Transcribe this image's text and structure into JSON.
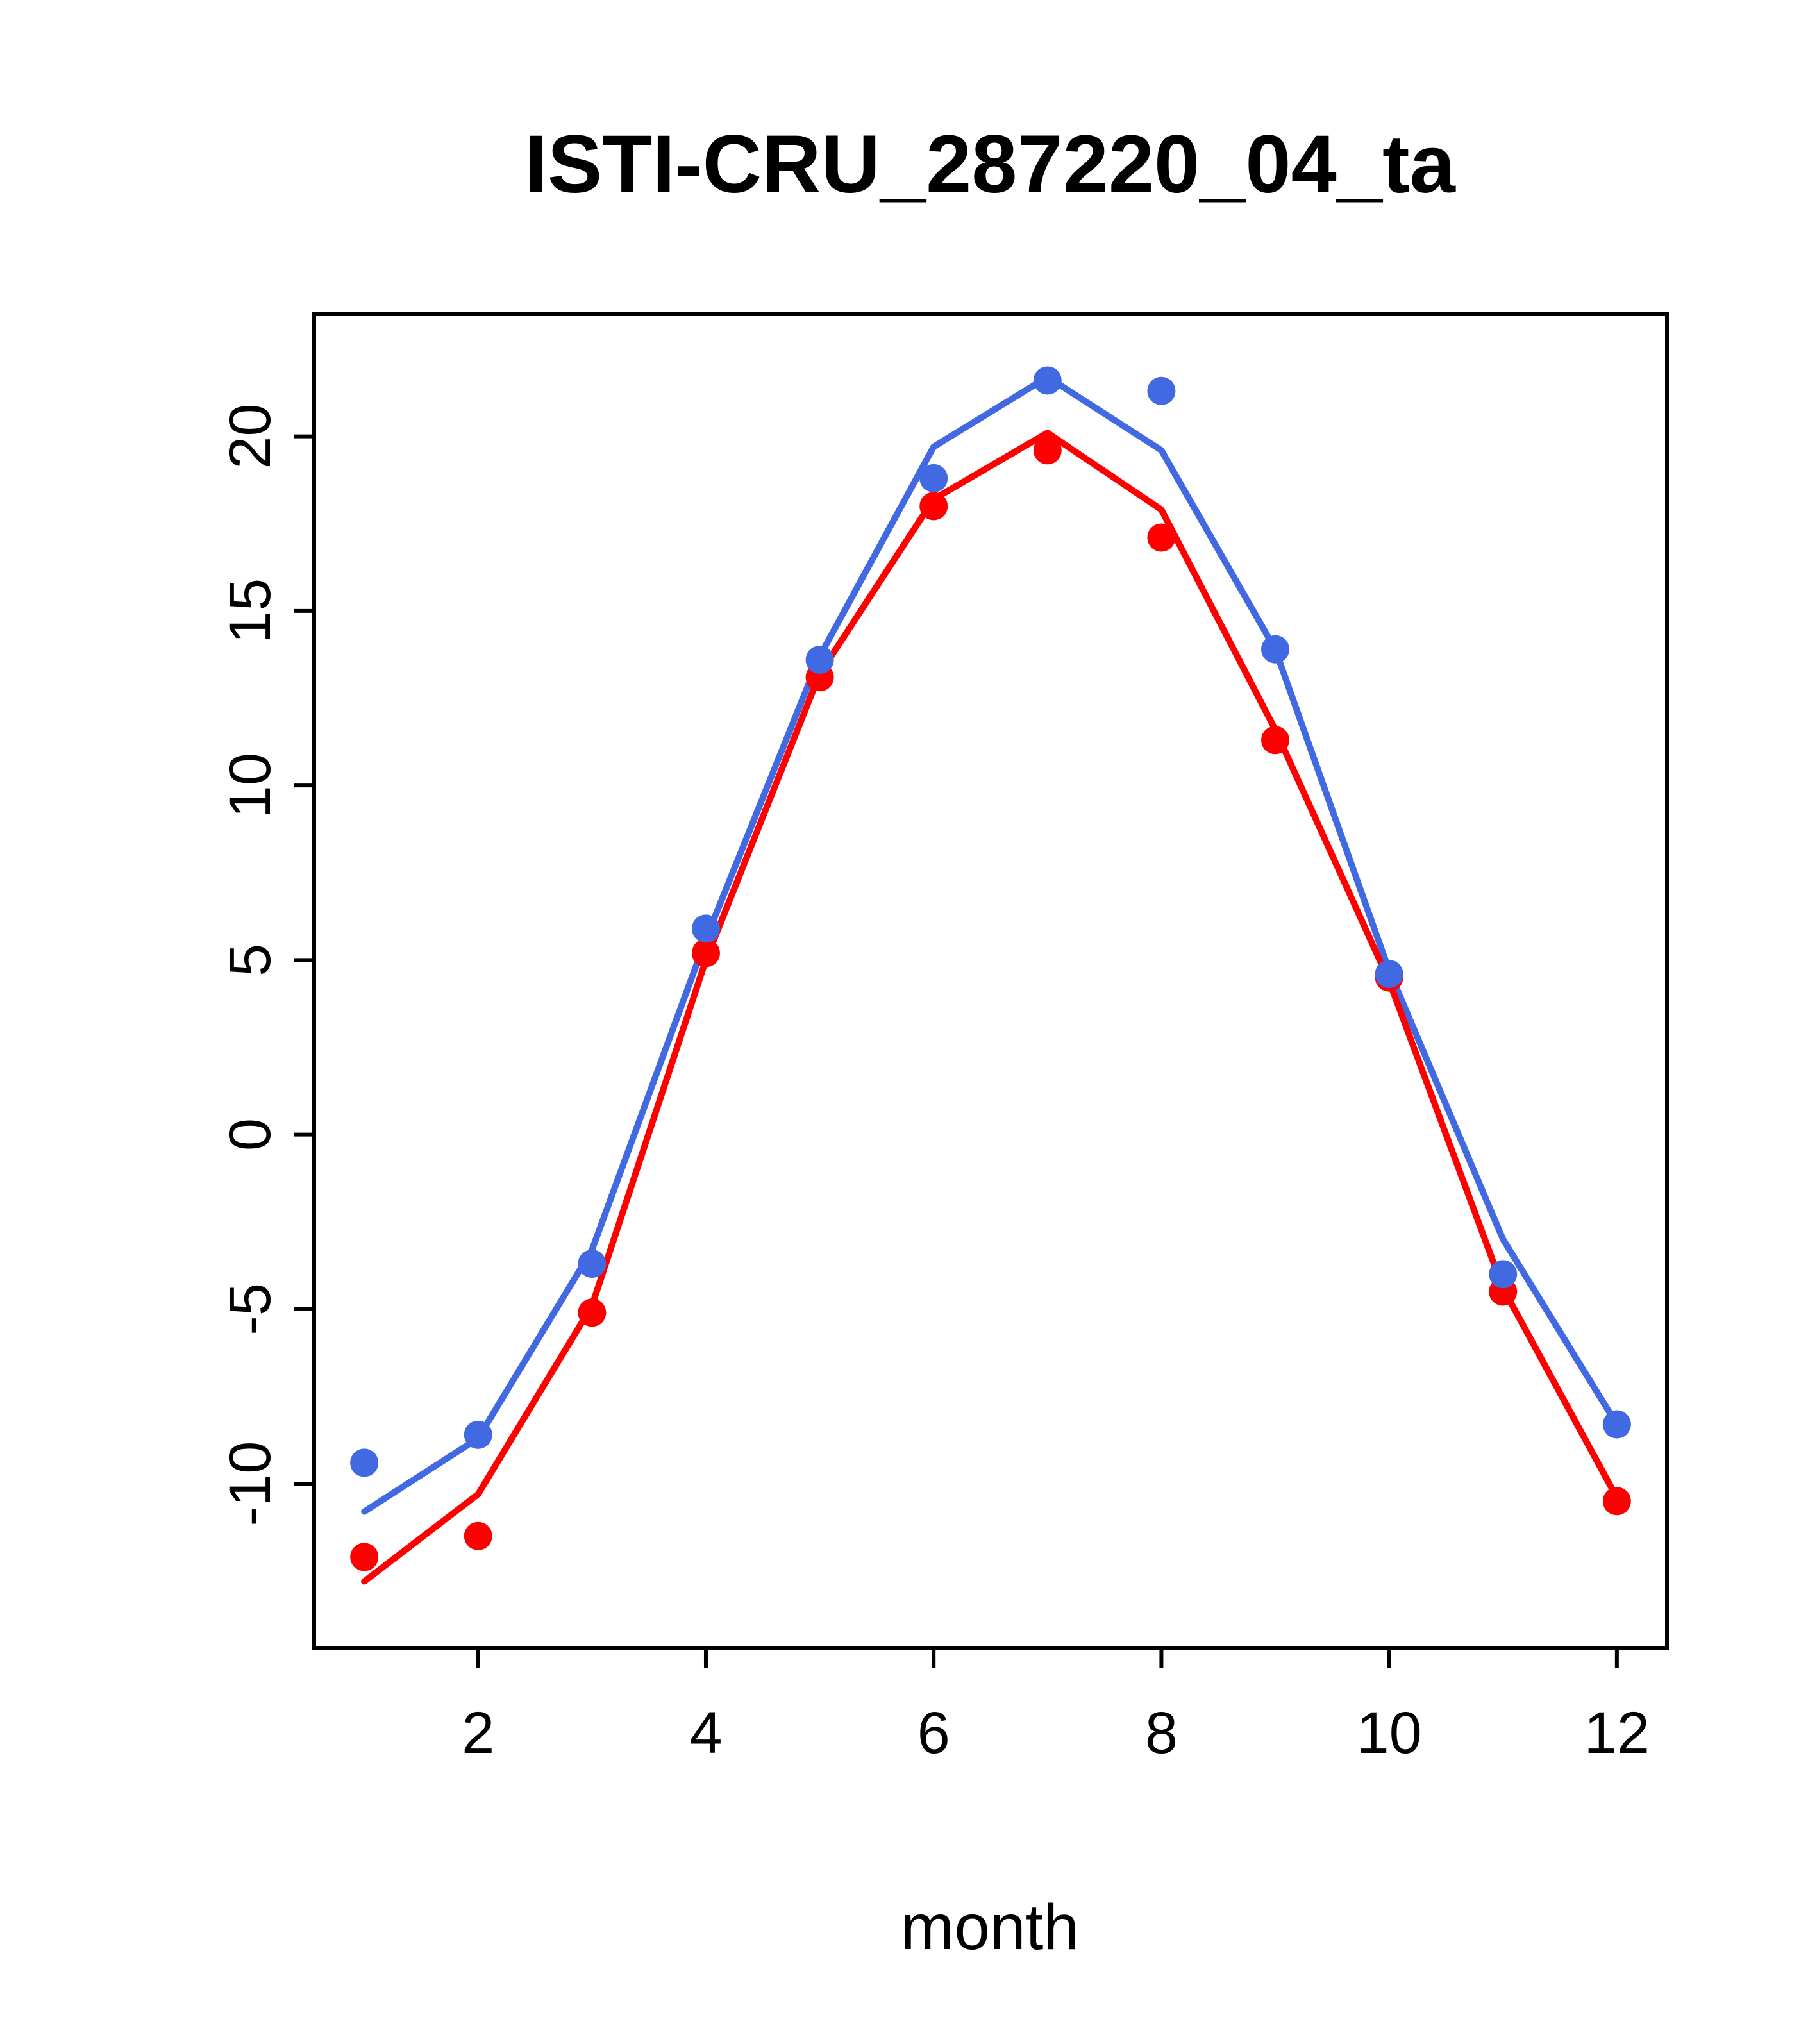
{
  "chart_data": {
    "type": "line",
    "title": "ISTI-CRU_287220_04_ta",
    "xlabel": "month",
    "ylabel": "",
    "x": [
      1,
      2,
      3,
      4,
      5,
      6,
      7,
      8,
      9,
      10,
      11,
      12
    ],
    "xlim": [
      0.56,
      12.44
    ],
    "ylim": [
      -14.7,
      23.5
    ],
    "xticks": [
      2,
      4,
      6,
      8,
      10,
      12
    ],
    "yticks": [
      -10,
      -5,
      0,
      5,
      10,
      15,
      20
    ],
    "grid": false,
    "legend": "none",
    "colors": {
      "series_blue": "#4169E1",
      "series_red": "#FF0000"
    },
    "series": [
      {
        "name": "blue-line",
        "type": "line",
        "color": "#4169E1",
        "values": [
          -10.8,
          -8.7,
          -3.3,
          5.6,
          13.7,
          19.7,
          21.7,
          19.6,
          13.9,
          4.7,
          -3.0,
          -8.3
        ]
      },
      {
        "name": "red-line",
        "type": "line",
        "color": "#FF0000",
        "values": [
          -12.8,
          -10.3,
          -4.9,
          5.0,
          13.2,
          18.2,
          20.1,
          17.9,
          11.6,
          4.4,
          -4.4,
          -10.4
        ]
      },
      {
        "name": "red-points",
        "type": "points",
        "color": "#FF0000",
        "values": [
          -12.1,
          -11.5,
          -5.1,
          5.2,
          13.1,
          18.0,
          19.6,
          17.1,
          11.3,
          4.5,
          -4.5,
          -10.5
        ]
      },
      {
        "name": "blue-points",
        "type": "points",
        "color": "#4169E1",
        "values": [
          -9.4,
          -8.6,
          -3.7,
          5.9,
          13.6,
          18.8,
          21.6,
          21.3,
          13.9,
          4.6,
          -4.0,
          -8.3
        ]
      }
    ]
  }
}
